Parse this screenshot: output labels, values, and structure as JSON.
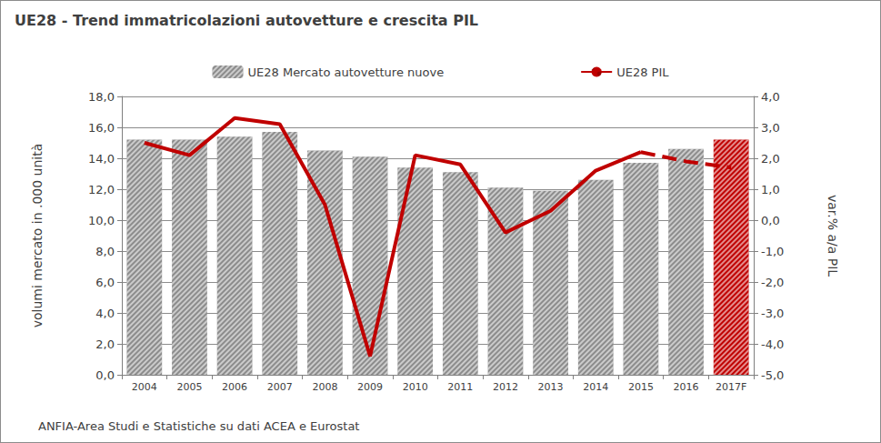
{
  "chart_data": {
    "type": "bar",
    "title": "UE28 - Trend immatricolazioni autovetture e crescita PIL",
    "source": "ANFIA-Area Studi e Statistiche su dati ACEA e Eurostat",
    "y_label": "volumi mercato in .000 unità",
    "y2_label": "var.% a/a PIL",
    "categories": [
      "2004",
      "2005",
      "2006",
      "2007",
      "2008",
      "2009",
      "2010",
      "2011",
      "2012",
      "2013",
      "2014",
      "2015",
      "2016",
      "2017F"
    ],
    "series": [
      {
        "name": "UE28 Mercato autovetture nuove",
        "type": "bar",
        "colors": [
          "#8c8c8c",
          "#8c8c8c",
          "#8c8c8c",
          "#8c8c8c",
          "#8c8c8c",
          "#8c8c8c",
          "#8c8c8c",
          "#8c8c8c",
          "#8c8c8c",
          "#8c8c8c",
          "#8c8c8c",
          "#8c8c8c",
          "#8c8c8c",
          "#c00000"
        ],
        "values": [
          15.2,
          15.2,
          15.4,
          15.7,
          14.5,
          14.1,
          13.4,
          13.1,
          12.1,
          11.9,
          12.6,
          13.7,
          14.6,
          15.2
        ]
      },
      {
        "name": "UE28 PIL",
        "type": "line",
        "axis": "y2",
        "color": "#c00000",
        "line_style": "solid",
        "values": [
          2.5,
          2.1,
          3.3,
          3.1,
          0.5,
          -4.4,
          2.1,
          1.8,
          -0.4,
          0.3,
          1.6,
          2.2,
          null,
          null
        ]
      },
      {
        "name": "UE28 PIL",
        "type": "line",
        "axis": "y2",
        "color": "#c00000",
        "line_style": "dashed",
        "values": [
          null,
          null,
          null,
          null,
          null,
          null,
          null,
          null,
          null,
          null,
          null,
          2.2,
          1.9,
          1.7
        ]
      }
    ],
    "ylim": [
      0,
      18
    ],
    "yticks": [
      {
        "value": 0,
        "label": "0,0"
      },
      {
        "value": 2,
        "label": "2,0"
      },
      {
        "value": 4,
        "label": "4,0"
      },
      {
        "value": 6,
        "label": "6,0"
      },
      {
        "value": 8,
        "label": "8,0"
      },
      {
        "value": 10,
        "label": "10,0"
      },
      {
        "value": 12,
        "label": "12,0"
      },
      {
        "value": 14,
        "label": "14,0"
      },
      {
        "value": 16,
        "label": "16,0"
      },
      {
        "value": 18,
        "label": "18,0"
      }
    ],
    "y2lim": [
      -5,
      4
    ],
    "y2ticks": [
      {
        "value": -5,
        "label": "-5,0"
      },
      {
        "value": -4,
        "label": "-4,0"
      },
      {
        "value": -3,
        "label": "-3,0"
      },
      {
        "value": -2,
        "label": "-2,0"
      },
      {
        "value": -1,
        "label": "-1,0"
      },
      {
        "value": 0,
        "label": "0,0"
      },
      {
        "value": 1,
        "label": "1,0"
      },
      {
        "value": 2,
        "label": "2,0"
      },
      {
        "value": 3,
        "label": "3,0"
      },
      {
        "value": 4,
        "label": "4,0"
      }
    ],
    "grid": true,
    "legend": "top"
  }
}
